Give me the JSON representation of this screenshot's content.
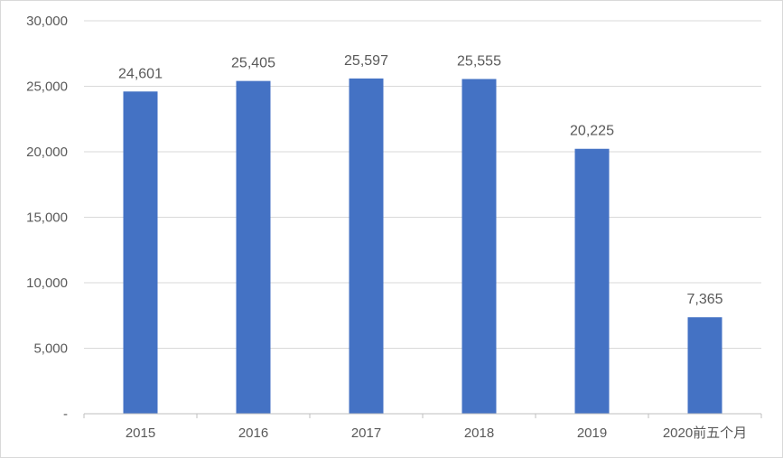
{
  "chart_data": {
    "type": "bar",
    "categories": [
      "2015",
      "2016",
      "2017",
      "2018",
      "2019",
      "2020前五个月"
    ],
    "values": [
      24601,
      25405,
      25597,
      25555,
      20225,
      7365
    ],
    "value_labels": [
      "24,601",
      "25,405",
      "25,597",
      "25,555",
      "20,225",
      "7,365"
    ],
    "y_ticks": [
      0,
      5000,
      10000,
      15000,
      20000,
      25000,
      30000
    ],
    "y_tick_labels": [
      "-",
      "5,000",
      "10,000",
      "15,000",
      "20,000",
      "25,000",
      "30,000"
    ],
    "ylim": [
      0,
      30000
    ],
    "grid": true,
    "legend": "none",
    "colors": {
      "bar": "#4472c4",
      "grid": "#d9d9d9",
      "axis": "#bfbfbf",
      "text": "#595959"
    }
  }
}
